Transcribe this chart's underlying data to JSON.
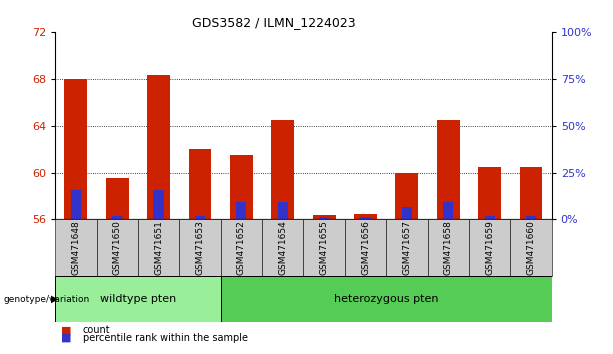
{
  "title": "GDS3582 / ILMN_1224023",
  "samples": [
    "GSM471648",
    "GSM471650",
    "GSM471651",
    "GSM471653",
    "GSM471652",
    "GSM471654",
    "GSM471655",
    "GSM471656",
    "GSM471657",
    "GSM471658",
    "GSM471659",
    "GSM471660"
  ],
  "red_tops": [
    68.0,
    59.5,
    68.3,
    62.0,
    61.5,
    64.5,
    56.4,
    56.5,
    60.0,
    64.5,
    60.5,
    60.5
  ],
  "blue_tops": [
    58.5,
    56.3,
    58.5,
    56.3,
    57.5,
    57.5,
    56.2,
    56.2,
    57.1,
    57.5,
    56.3,
    56.3
  ],
  "ymin": 56,
  "ymax": 72,
  "yticks": [
    56,
    60,
    64,
    68,
    72
  ],
  "right_yticks": [
    0,
    25,
    50,
    75,
    100
  ],
  "bar_width": 0.55,
  "red_color": "#cc2200",
  "blue_color": "#3333cc",
  "bg_gray": "#cccccc",
  "wildtype_color": "#99ee99",
  "hetero_color": "#55cc55",
  "wildtype_count": 4,
  "hetero_count": 8,
  "legend_count": "count",
  "legend_pct": "percentile rank within the sample",
  "genotype_label": "genotype/variation",
  "wildtype_label": "wildtype pten",
  "hetero_label": "heterozygous pten",
  "grid_lines": [
    60,
    64,
    68
  ]
}
